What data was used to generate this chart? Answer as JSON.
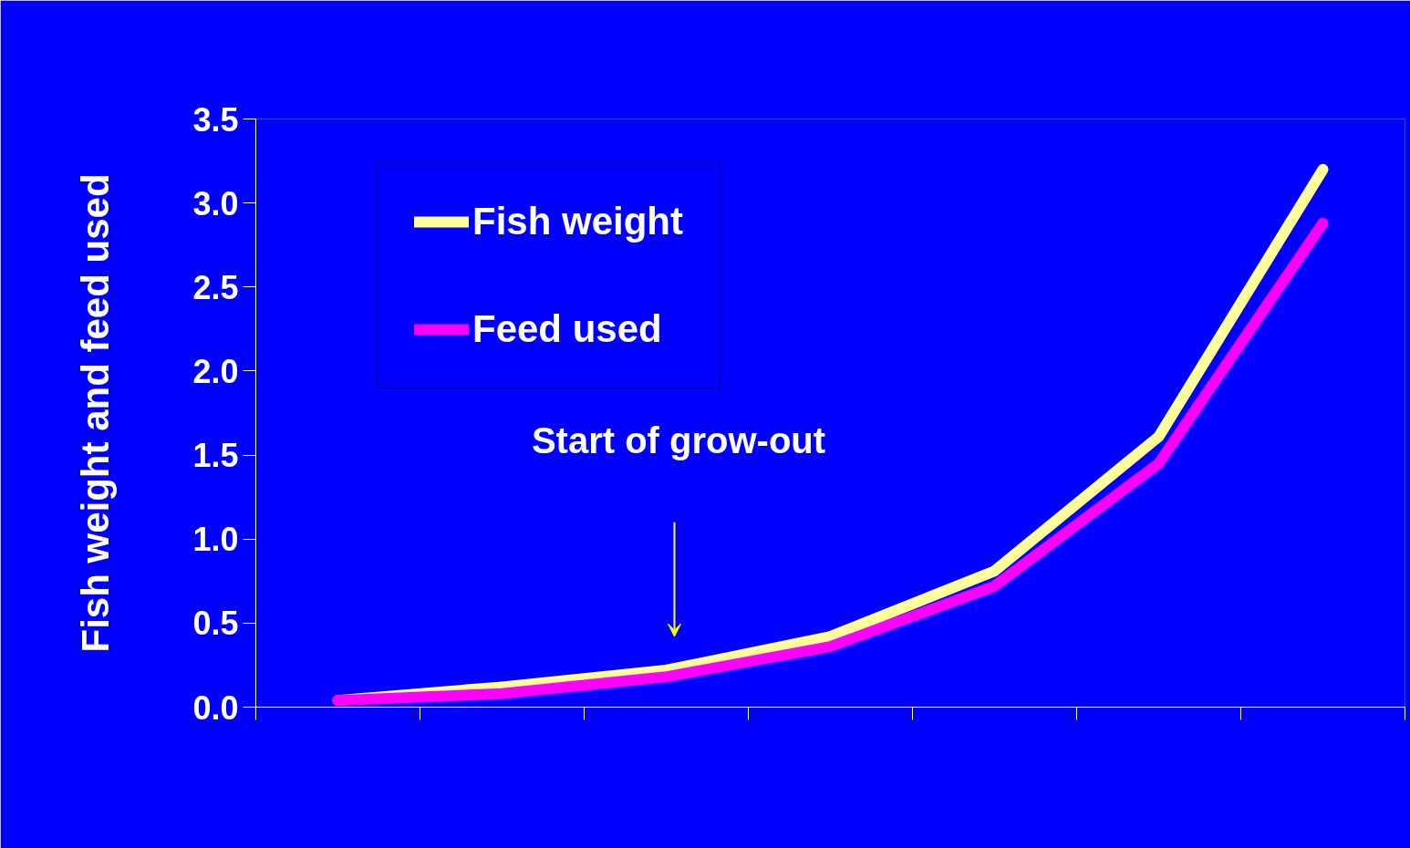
{
  "chart_data": {
    "type": "line",
    "ylabel": "Fish weight and feed used",
    "categories": [
      null,
      null,
      null,
      null,
      null,
      null,
      null
    ],
    "series": [
      {
        "name": "Fish weight",
        "color": "#ffff99",
        "values": [
          0.04,
          0.12,
          0.22,
          0.42,
          0.81,
          1.61,
          3.2
        ]
      },
      {
        "name": "Feed used",
        "color": "#ff00ff",
        "values": [
          0.04,
          0.08,
          0.18,
          0.36,
          0.72,
          1.45,
          2.88
        ]
      }
    ],
    "ylim": [
      0,
      3.5
    ],
    "yticks": [
      {
        "value": 0,
        "label": "0.0"
      },
      {
        "value": 0.5,
        "label": "0.5"
      },
      {
        "value": 1,
        "label": "1.0"
      },
      {
        "value": 1.5,
        "label": "1.5"
      },
      {
        "value": 2,
        "label": "2.0"
      },
      {
        "value": 2.5,
        "label": "2.5"
      },
      {
        "value": 3,
        "label": "3.0"
      },
      {
        "value": 3.5,
        "label": "3.5"
      }
    ],
    "annotations": [
      "Start of grow-out"
    ],
    "grid": false,
    "legend": "top left",
    "marker": "none",
    "line_style": "solid"
  }
}
